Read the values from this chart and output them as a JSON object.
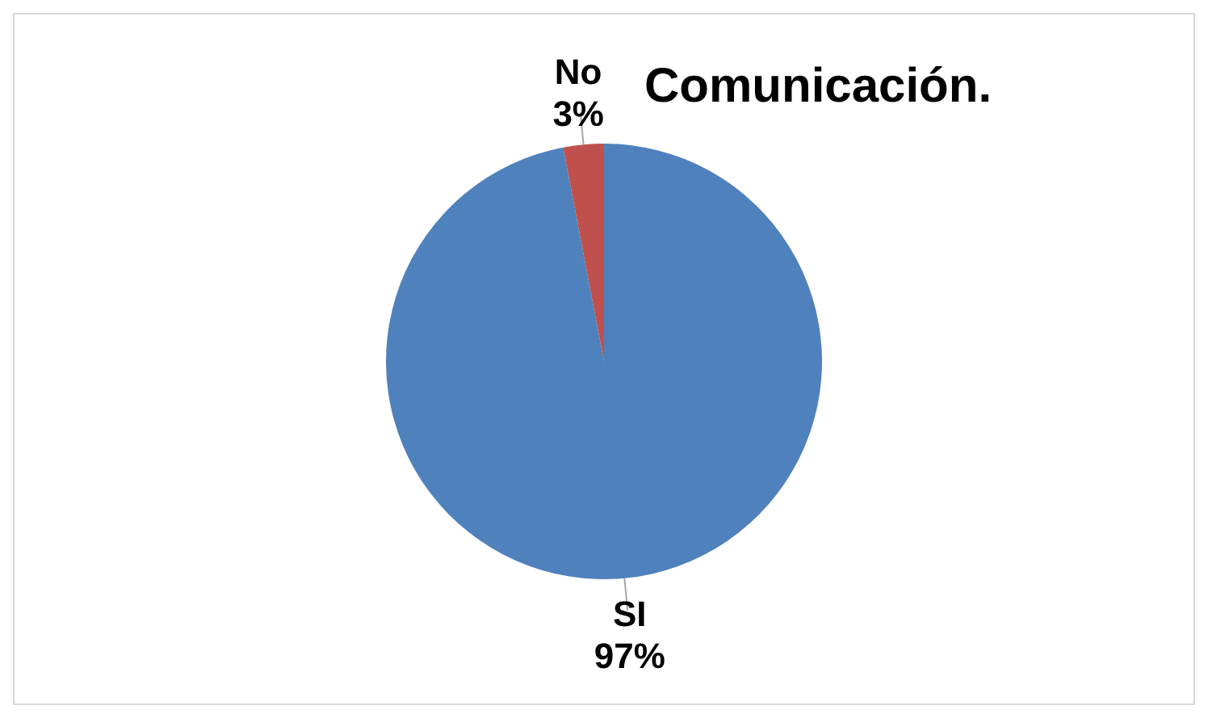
{
  "chart_data": {
    "type": "pie",
    "title": "Comunicación.",
    "categories": [
      "SI",
      "No"
    ],
    "values": [
      97,
      3
    ],
    "colors": [
      "#4f81bd",
      "#c0504d"
    ],
    "value_labels": [
      "97%",
      "3%"
    ],
    "legend": false
  }
}
